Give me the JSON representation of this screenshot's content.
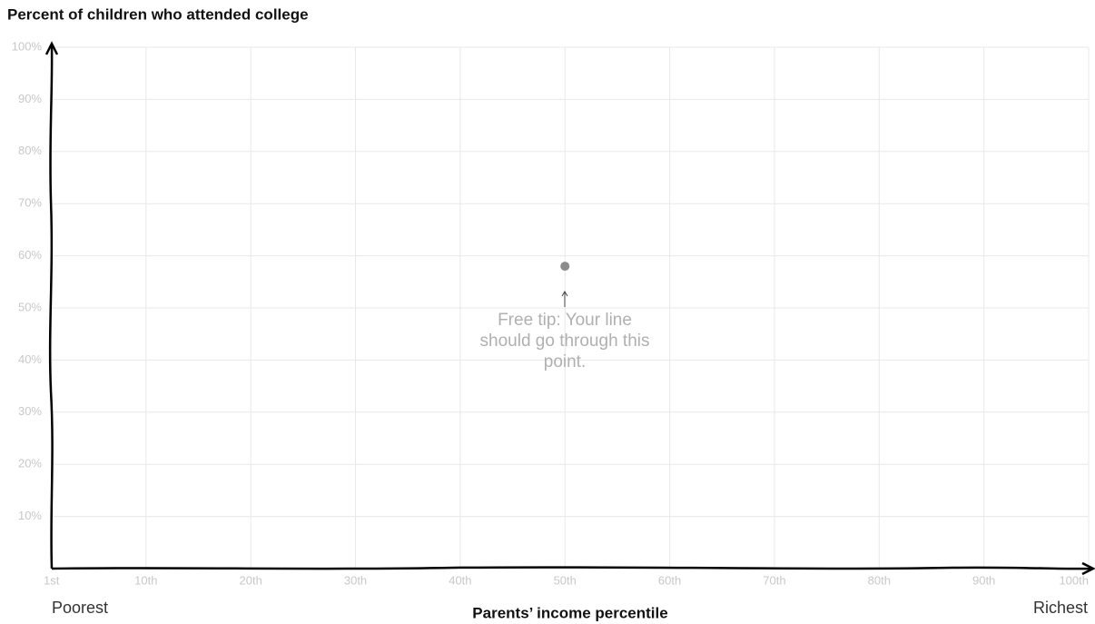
{
  "chart_data": {
    "type": "scatter",
    "title": "Percent of children who attended college",
    "x_label": "Parents’ income percentile",
    "x_left_label": "Poorest",
    "x_right_label": "Richest",
    "annotation": "Free tip: Your line should go through this point.",
    "x": [
      50
    ],
    "values": [
      58
    ],
    "color": "#8c8c8c",
    "xlim": [
      1,
      100
    ],
    "ylim": [
      0,
      100
    ],
    "xticks": [
      {
        "value": 1,
        "label": "1st"
      },
      {
        "value": 10,
        "label": "10th"
      },
      {
        "value": 20,
        "label": "20th"
      },
      {
        "value": 30,
        "label": "30th"
      },
      {
        "value": 40,
        "label": "40th"
      },
      {
        "value": 50,
        "label": "50th"
      },
      {
        "value": 60,
        "label": "60th"
      },
      {
        "value": 70,
        "label": "70th"
      },
      {
        "value": 80,
        "label": "80th"
      },
      {
        "value": 90,
        "label": "90th"
      },
      {
        "value": 100,
        "label": "100th"
      }
    ],
    "yticks": [
      {
        "value": 10,
        "label": "10%"
      },
      {
        "value": 20,
        "label": "20%"
      },
      {
        "value": 30,
        "label": "30%"
      },
      {
        "value": 40,
        "label": "40%"
      },
      {
        "value": 50,
        "label": "50%"
      },
      {
        "value": 60,
        "label": "60%"
      },
      {
        "value": 70,
        "label": "70%"
      },
      {
        "value": 80,
        "label": "80%"
      },
      {
        "value": 90,
        "label": "90%"
      },
      {
        "value": 100,
        "label": "100%"
      }
    ],
    "grid": true
  }
}
